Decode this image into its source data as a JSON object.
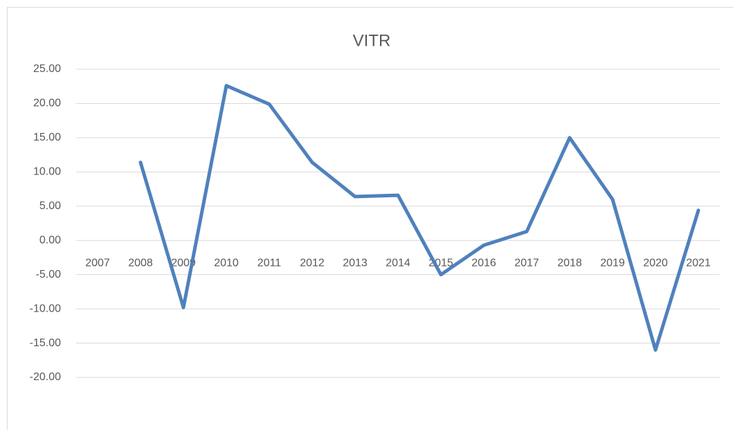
{
  "chart_data": {
    "type": "line",
    "title": "VITR",
    "categories": [
      "2007",
      "2008",
      "2009",
      "2010",
      "2011",
      "2012",
      "2013",
      "2014",
      "2015",
      "2016",
      "2017",
      "2018",
      "2019",
      "2020",
      "2021"
    ],
    "series": [
      {
        "name": "VITR",
        "color": "#4f81bd",
        "values": [
          null,
          11.4,
          -9.8,
          22.6,
          19.9,
          11.4,
          6.4,
          6.6,
          -5.0,
          -0.7,
          1.3,
          15.0,
          6.0,
          -16.0,
          4.4
        ]
      }
    ],
    "ylim": [
      -20,
      25
    ],
    "yticks": [
      {
        "value": -20,
        "label": "-20.00"
      },
      {
        "value": -15,
        "label": "-15.00"
      },
      {
        "value": -10,
        "label": "-10.00"
      },
      {
        "value": -5,
        "label": "-5.00"
      },
      {
        "value": 0,
        "label": "0.00"
      },
      {
        "value": 5,
        "label": "5.00"
      },
      {
        "value": 10,
        "label": "10.00"
      },
      {
        "value": 15,
        "label": "15.00"
      },
      {
        "value": 20,
        "label": "20.00"
      },
      {
        "value": 25,
        "label": "25.00"
      }
    ],
    "grid": true
  }
}
